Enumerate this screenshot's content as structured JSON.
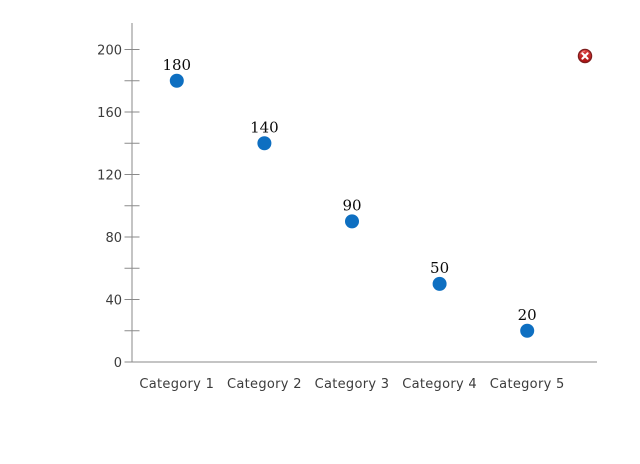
{
  "chart_data": {
    "type": "scatter",
    "title": "",
    "xlabel": "",
    "ylabel": "",
    "categories": [
      "Category 1",
      "Category 2",
      "Category 3",
      "Category 4",
      "Category 5"
    ],
    "values": [
      180,
      140,
      90,
      50,
      20
    ],
    "point_labels": [
      "180",
      "140",
      "90",
      "50",
      "20"
    ],
    "ylim": [
      0,
      200
    ],
    "y_major_ticks": [
      0,
      40,
      80,
      120,
      160,
      200
    ],
    "y_major_tick_labels": [
      "0",
      "40",
      "80",
      "120",
      "160",
      "200"
    ],
    "y_minor_step": 20,
    "grid": false,
    "legend_visible": false,
    "marker_color": "#0e6fc1"
  },
  "colors": {
    "background": "#ffffff",
    "axis": "#8a8a8a",
    "tick": "#8a8a8a",
    "axis_label_text": "#3c3c3c",
    "data_label_text": "#0a0a0a",
    "marker": "#0e6fc1",
    "close_icon_fill_top": "#e04343",
    "close_icon_fill_bottom": "#a80f0f",
    "close_icon_ring": "#7d1d1d",
    "close_icon_glyph": "#ffffff"
  },
  "close_button": {
    "tooltip": "Close"
  }
}
